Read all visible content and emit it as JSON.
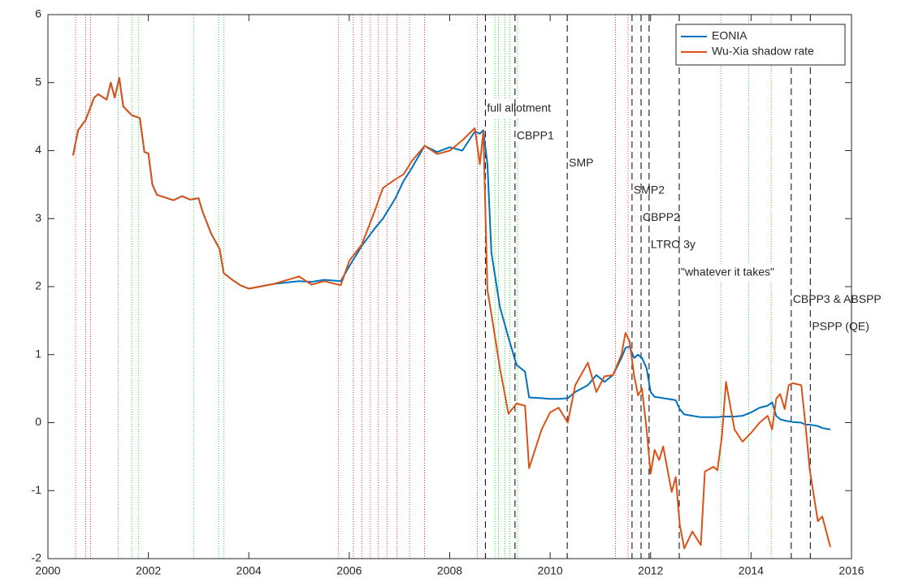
{
  "chart_data": {
    "type": "line",
    "xlim": [
      2000,
      2016
    ],
    "xticks": [
      2000,
      2002,
      2004,
      2006,
      2008,
      2010,
      2012,
      2014,
      2016
    ],
    "ylim": [
      -2,
      6
    ],
    "yticks": [
      -2,
      -1,
      0,
      1,
      2,
      3,
      4,
      5,
      6
    ],
    "legend": "upper right",
    "grid": false,
    "x": [
      2000.5,
      2000.6,
      2000.75,
      2000.92,
      2001.0,
      2001.17,
      2001.25,
      2001.33,
      2001.42,
      2001.5,
      2001.67,
      2001.83,
      2001.92,
      2002.0,
      2002.08,
      2002.17,
      2002.5,
      2002.67,
      2002.83,
      2003.0,
      2003.08,
      2003.25,
      2003.42,
      2003.5,
      2003.67,
      2003.83,
      2004.0,
      2004.5,
      2005.0,
      2005.25,
      2005.5,
      2005.83,
      2006.0,
      2006.25,
      2006.5,
      2006.67,
      2006.92,
      2007.08,
      2007.25,
      2007.5,
      2007.75,
      2008.0,
      2008.25,
      2008.5,
      2008.6,
      2008.67,
      2008.75,
      2008.83,
      2009.0,
      2009.17,
      2009.33,
      2009.5,
      2009.58,
      2009.83,
      2010.0,
      2010.17,
      2010.35,
      2010.5,
      2010.75,
      2010.92,
      2011.08,
      2011.25,
      2011.42,
      2011.5,
      2011.58,
      2011.67,
      2011.75,
      2011.83,
      2011.92,
      2012.0,
      2012.08,
      2012.17,
      2012.25,
      2012.42,
      2012.5,
      2012.58,
      2012.67,
      2012.83,
      2013.0,
      2013.08,
      2013.25,
      2013.33,
      2013.42,
      2013.5,
      2013.67,
      2013.83,
      2014.0,
      2014.17,
      2014.33,
      2014.42,
      2014.5,
      2014.58,
      2014.67,
      2014.75,
      2014.83,
      2015.0,
      2015.08,
      2015.17,
      2015.33,
      2015.42,
      2015.58
    ],
    "series": [
      {
        "name": "EONIA",
        "color": "#0072bd",
        "values": [
          3.93,
          4.3,
          4.45,
          4.78,
          4.83,
          4.75,
          5.0,
          4.78,
          5.07,
          4.65,
          4.52,
          4.48,
          3.98,
          3.96,
          3.5,
          3.35,
          3.27,
          3.33,
          3.28,
          3.3,
          3.1,
          2.78,
          2.55,
          2.2,
          2.1,
          2.02,
          1.97,
          2.04,
          2.08,
          2.07,
          2.1,
          2.08,
          2.3,
          2.6,
          2.85,
          3.0,
          3.3,
          3.55,
          3.75,
          4.07,
          3.98,
          4.05,
          4.0,
          4.28,
          4.25,
          4.3,
          3.8,
          2.5,
          1.7,
          1.25,
          0.85,
          0.75,
          0.37,
          0.36,
          0.35,
          0.35,
          0.36,
          0.45,
          0.55,
          0.7,
          0.6,
          0.7,
          0.95,
          1.1,
          1.12,
          0.95,
          1.0,
          0.95,
          0.8,
          0.45,
          0.38,
          0.37,
          0.36,
          0.34,
          0.33,
          0.2,
          0.12,
          0.1,
          0.08,
          0.08,
          0.08,
          0.08,
          0.09,
          0.09,
          0.09,
          0.1,
          0.15,
          0.22,
          0.25,
          0.3,
          0.1,
          0.05,
          0.03,
          0.02,
          0.01,
          0.0,
          -0.03,
          -0.03,
          -0.05,
          -0.08,
          -0.1
        ]
      },
      {
        "name": "Wu-Xia shadow rate",
        "color": "#d95319",
        "values": [
          3.93,
          4.3,
          4.45,
          4.78,
          4.83,
          4.75,
          5.0,
          4.78,
          5.07,
          4.65,
          4.52,
          4.48,
          3.98,
          3.96,
          3.5,
          3.35,
          3.27,
          3.33,
          3.28,
          3.3,
          3.1,
          2.78,
          2.55,
          2.2,
          2.1,
          2.02,
          1.97,
          2.04,
          2.15,
          2.03,
          2.08,
          2.02,
          2.38,
          2.62,
          3.1,
          3.45,
          3.58,
          3.65,
          3.85,
          4.07,
          3.95,
          4.0,
          4.15,
          4.33,
          3.8,
          4.28,
          1.95,
          1.6,
          0.8,
          0.13,
          0.28,
          0.25,
          -0.67,
          -0.1,
          0.15,
          0.22,
          0.0,
          0.55,
          0.88,
          0.45,
          0.68,
          0.7,
          1.0,
          1.32,
          1.2,
          0.7,
          0.4,
          0.5,
          -0.1,
          -0.75,
          -0.4,
          -0.55,
          -0.35,
          -1.02,
          -0.8,
          -1.5,
          -1.85,
          -1.6,
          -1.8,
          -0.72,
          -0.65,
          -0.7,
          -0.2,
          0.6,
          -0.1,
          -0.28,
          -0.15,
          0.0,
          0.1,
          -0.1,
          0.35,
          0.42,
          0.2,
          0.55,
          0.58,
          0.55,
          0.0,
          -0.7,
          -1.45,
          -1.38,
          -1.83
        ]
      }
    ],
    "vlines": [
      {
        "color": "#ff0000",
        "style": "dotted",
        "x": [
          2000.55,
          2000.75,
          2000.85,
          2005.78,
          2006.08,
          2006.25,
          2006.42,
          2006.58,
          2006.75,
          2006.95,
          2007.2,
          2007.5,
          2008.55,
          2011.3,
          2011.55
        ]
      },
      {
        "color": "#00cc00",
        "style": "dotted",
        "x": [
          2001.4,
          2001.67,
          2001.8,
          2002.9,
          2003.4,
          2003.5,
          2008.9,
          2008.97,
          2009.1,
          2009.2,
          2009.35,
          2013.4,
          2013.95,
          2014.4
        ]
      }
    ],
    "annotations": [
      {
        "text": "full allotment",
        "x": 2008.71
      },
      {
        "text": "CBPP1",
        "x": 2009.3
      },
      {
        "text": "SMP",
        "x": 2010.34
      },
      {
        "text": "SMP2",
        "x": 2011.63
      },
      {
        "text": "CBPP2",
        "x": 2011.81
      },
      {
        "text": "LTRO 3y",
        "x": 2011.97
      },
      {
        "text": "\"whatever it takes\"",
        "x": 2012.57
      },
      {
        "text": "CBPP3 & ABSPP",
        "x": 2014.8
      },
      {
        "text": "PSPP (QE)",
        "x": 2015.18
      }
    ]
  }
}
